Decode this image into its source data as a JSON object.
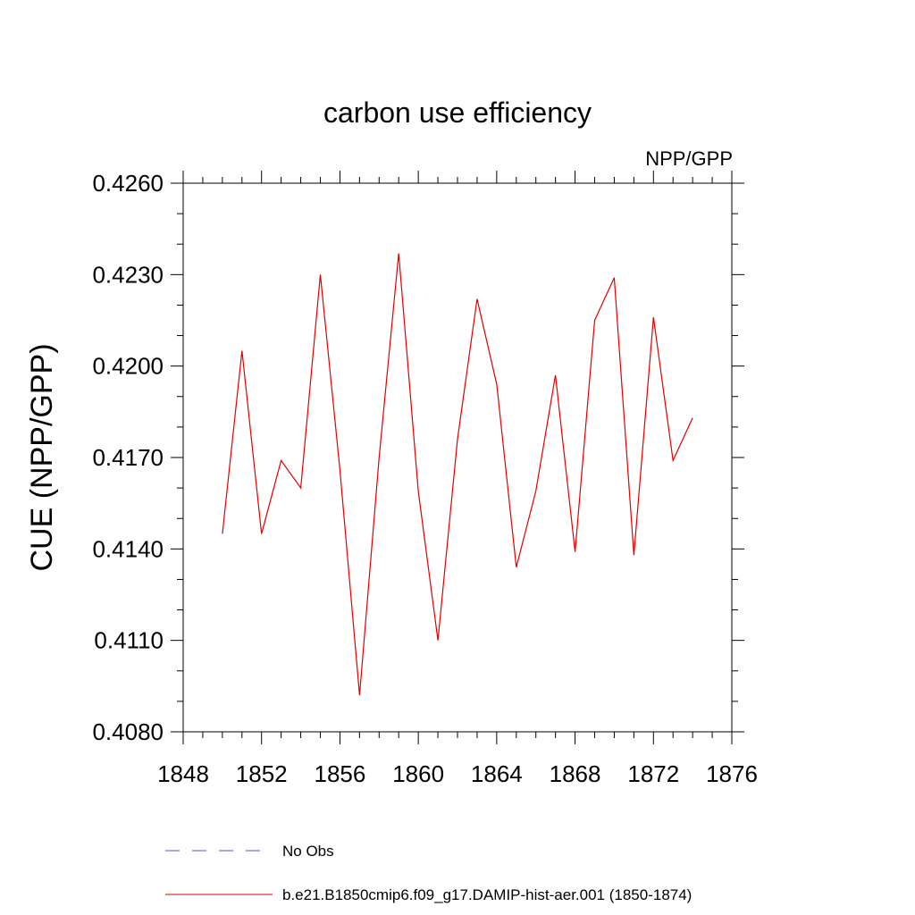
{
  "chart_data": {
    "type": "line",
    "title": "carbon use efficiency",
    "subtitle": "NPP/GPP",
    "xlabel": "",
    "ylabel": "CUE  (NPP/GPP)",
    "xlim": [
      1848,
      1876
    ],
    "ylim": [
      0.408,
      0.426
    ],
    "xticks": [
      1848,
      1852,
      1856,
      1860,
      1864,
      1868,
      1872,
      1876
    ],
    "xtick_labels": [
      "1848",
      "1852",
      "1856",
      "1860",
      "1864",
      "1868",
      "1872",
      "1876"
    ],
    "yticks": [
      0.408,
      0.411,
      0.414,
      0.417,
      0.42,
      0.423,
      0.426
    ],
    "ytick_labels": [
      "0.4080",
      "0.4110",
      "0.4140",
      "0.4170",
      "0.4200",
      "0.4230",
      "0.4260"
    ],
    "grid": false,
    "legend_position": "bottom",
    "legend": [
      {
        "label": "No Obs",
        "color": "#5050c8",
        "dash": "dashed"
      },
      {
        "label": "b.e21.B1850cmip6.f09_g17.DAMIP-hist-aer.001 (1850-1874)",
        "color": "#e00000",
        "dash": "solid"
      }
    ],
    "series": [
      {
        "name": "b.e21.B1850cmip6.f09_g17.DAMIP-hist-aer.001 (1850-1874)",
        "color": "#e00000",
        "x": [
          1850,
          1851,
          1852,
          1853,
          1854,
          1855,
          1856,
          1857,
          1858,
          1859,
          1860,
          1861,
          1862,
          1863,
          1864,
          1865,
          1866,
          1867,
          1868,
          1869,
          1870,
          1871,
          1872,
          1873,
          1874
        ],
        "y": [
          0.4145,
          0.4205,
          0.4145,
          0.4169,
          0.416,
          0.423,
          0.4166,
          0.4092,
          0.417,
          0.4237,
          0.4159,
          0.411,
          0.4176,
          0.4222,
          0.4194,
          0.4134,
          0.4159,
          0.4197,
          0.4139,
          0.4215,
          0.4229,
          0.4138,
          0.4216,
          0.4169,
          0.4183
        ]
      }
    ]
  }
}
